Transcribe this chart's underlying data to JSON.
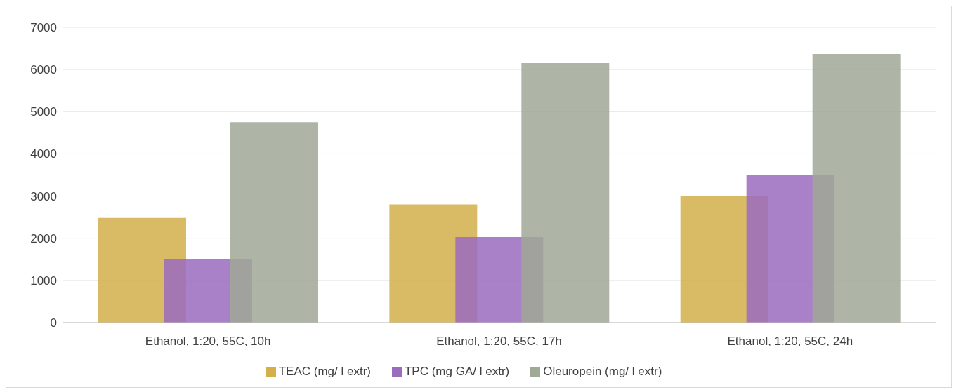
{
  "chart_data": {
    "type": "bar",
    "categories": [
      "Ethanol, 1:20, 55C, 10h",
      "Ethanol, 1:20, 55C, 17h",
      "Ethanol, 1:20, 55C, 24h"
    ],
    "series": [
      {
        "name": "TEAC (mg/ l extr)",
        "color": "#d4af4a",
        "values": [
          2480,
          2800,
          3000
        ]
      },
      {
        "name": "TPC (mg GA/ l extr)",
        "color": "#9a6bbf",
        "values": [
          1500,
          2030,
          3500
        ]
      },
      {
        "name": "Oleuropein (mg/ l extr)",
        "color": "#a0a896",
        "values": [
          4750,
          6150,
          6370
        ]
      }
    ],
    "ylim": [
      0,
      7000
    ],
    "yticks": [
      0,
      1000,
      2000,
      3000,
      4000,
      5000,
      6000,
      7000
    ],
    "grid": "y",
    "legend": "bottom"
  }
}
